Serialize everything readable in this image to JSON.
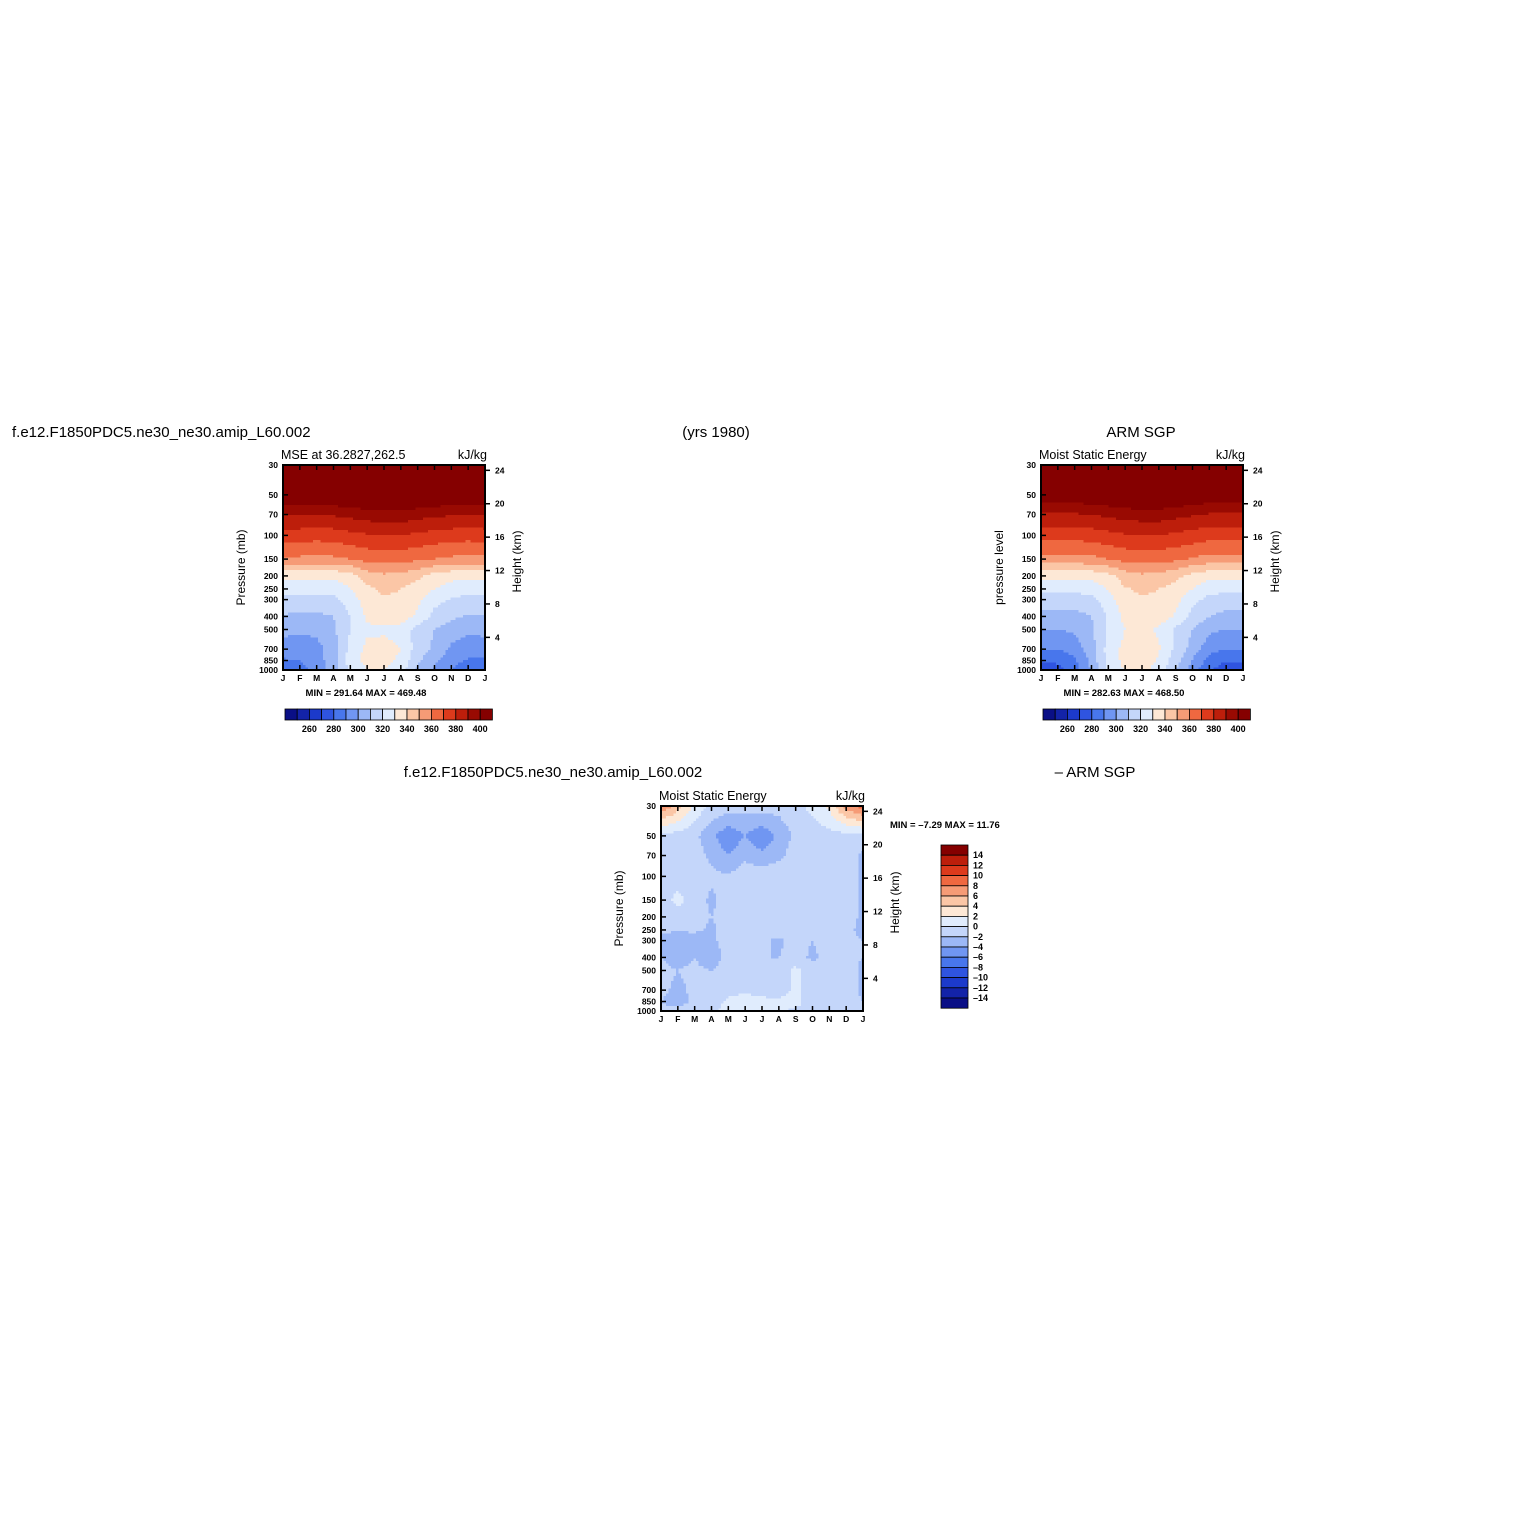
{
  "headers": {
    "case_name_top": "f.e12.F1850PDC5.ne30_ne30.amip_L60.002",
    "years": "(yrs 1980)",
    "obs_name": "ARM SGP",
    "case_name_bottom": "f.e12.F1850PDC5.ne30_ne30.amip_L60.002",
    "diff_suffix": "– ARM SGP"
  },
  "colors": {
    "mse_scale": [
      "#0a0f86",
      "#1323a8",
      "#1c3acb",
      "#2f54e0",
      "#4876ec",
      "#7096f2",
      "#9cb8f6",
      "#c4d6fa",
      "#e0ecfd",
      "#fde8d6",
      "#fbc6a6",
      "#f69b76",
      "#ef6840",
      "#dd3a1c",
      "#bd1e0b",
      "#990a02",
      "#850000"
    ],
    "diff_scale": [
      "#0a0f86",
      "#1323a8",
      "#1c3acb",
      "#2f54e0",
      "#4876ec",
      "#7096f2",
      "#9cb8f6",
      "#c4d6fa",
      "#e0ecfd",
      "#fde8d6",
      "#fbc6a6",
      "#f69b76",
      "#ef6840",
      "#dd3a1c",
      "#bd1e0b",
      "#850000"
    ]
  },
  "chart_data": [
    {
      "type": "heatmap",
      "title": "MSE at 36.2827,262.5",
      "units": "kJ/kg",
      "ylabel": "Pressure (mb)",
      "ylabel_right": "Height (km)",
      "x_ticks": [
        "J",
        "F",
        "M",
        "A",
        "M",
        "J",
        "J",
        "A",
        "S",
        "O",
        "N",
        "D",
        "J"
      ],
      "y_ticks": [
        "30",
        "50",
        "70",
        "100",
        "150",
        "200",
        "250",
        "300",
        "400",
        "500",
        "700",
        "850",
        "1000"
      ],
      "y_ticks_right": [
        "24",
        "20",
        "16",
        "12",
        "8",
        "4"
      ],
      "min_max": "MIN = 291.64  MAX = 469.48",
      "colorbar_labels": [
        "260",
        "280",
        "300",
        "320",
        "340",
        "360",
        "380",
        "400"
      ],
      "levels_mb": [
        30,
        50,
        70,
        100,
        150,
        200,
        250,
        300,
        400,
        500,
        700,
        850,
        1000
      ],
      "values": [
        [
          470,
          470,
          470,
          470,
          470,
          470,
          470,
          470,
          470,
          470,
          470,
          470,
          470
        ],
        [
          420,
          420,
          420,
          421,
          423,
          425,
          426,
          426,
          424,
          422,
          420,
          420,
          420
        ],
        [
          401,
          401,
          400,
          401,
          403,
          405,
          406,
          406,
          404,
          402,
          401,
          400,
          401
        ],
        [
          385,
          385,
          384,
          385,
          387,
          389,
          390,
          390,
          388,
          386,
          385,
          384,
          385
        ],
        [
          368,
          368,
          367,
          368,
          370,
          373,
          374,
          374,
          372,
          370,
          368,
          367,
          368
        ],
        [
          343,
          343,
          342,
          342,
          345,
          355,
          358,
          357,
          352,
          345,
          343,
          342,
          343
        ],
        [
          335,
          335,
          334,
          334,
          340,
          348,
          352,
          350,
          346,
          340,
          336,
          334,
          335
        ],
        [
          327,
          327,
          326,
          327,
          335,
          345,
          349,
          348,
          342,
          333,
          329,
          327,
          327
        ],
        [
          319,
          318,
          318,
          320,
          330,
          342,
          346,
          345,
          338,
          327,
          322,
          319,
          319
        ],
        [
          313,
          312,
          313,
          318,
          330,
          338,
          338,
          336,
          326,
          320,
          315,
          312,
          313
        ],
        [
          305,
          304,
          306,
          316,
          333,
          343,
          344,
          340,
          325,
          318,
          308,
          304,
          305
        ],
        [
          299,
          300,
          305,
          316,
          335,
          343,
          343,
          338,
          322,
          312,
          303,
          299,
          299
        ],
        [
          293,
          297,
          303,
          315,
          333,
          340,
          340,
          335,
          318,
          309,
          300,
          293,
          293
        ]
      ]
    },
    {
      "type": "heatmap",
      "title": "Moist Static Energy",
      "units": "kJ/kg",
      "ylabel": "pressure level",
      "ylabel_right": "Height (km)",
      "x_ticks": [
        "J",
        "F",
        "M",
        "A",
        "M",
        "J",
        "J",
        "A",
        "S",
        "O",
        "N",
        "D",
        "J"
      ],
      "y_ticks": [
        "30",
        "50",
        "70",
        "100",
        "150",
        "200",
        "250",
        "300",
        "400",
        "500",
        "700",
        "850",
        "1000"
      ],
      "y_ticks_right": [
        "24",
        "20",
        "16",
        "12",
        "8",
        "4"
      ],
      "min_max": "MIN = 282.63  MAX = 468.50",
      "colorbar_labels": [
        "260",
        "280",
        "300",
        "320",
        "340",
        "360",
        "380",
        "400"
      ],
      "levels_mb": [
        30,
        50,
        70,
        100,
        150,
        200,
        250,
        300,
        400,
        500,
        700,
        850,
        1000
      ],
      "values": [
        [
          468,
          468,
          468,
          468,
          468,
          468,
          468,
          468,
          468,
          468,
          468,
          468,
          468
        ],
        [
          418,
          418,
          418,
          419,
          421,
          423,
          424,
          424,
          422,
          420,
          418,
          418,
          418
        ],
        [
          399,
          399,
          399,
          400,
          402,
          404,
          405,
          405,
          403,
          401,
          399,
          399,
          399
        ],
        [
          384,
          384,
          384,
          385,
          387,
          389,
          390,
          390,
          388,
          386,
          384,
          384,
          384
        ],
        [
          366,
          366,
          366,
          367,
          370,
          373,
          374,
          374,
          372,
          369,
          366,
          366,
          366
        ],
        [
          343,
          343,
          343,
          343,
          347,
          355,
          358,
          357,
          353,
          346,
          343,
          343,
          343
        ],
        [
          333,
          333,
          333,
          334,
          341,
          349,
          352,
          350,
          346,
          340,
          334,
          333,
          333
        ],
        [
          325,
          325,
          325,
          327,
          336,
          346,
          349,
          348,
          343,
          333,
          327,
          325,
          325
        ],
        [
          317,
          317,
          317,
          320,
          331,
          343,
          346,
          345,
          339,
          327,
          320,
          317,
          317
        ],
        [
          310,
          310,
          312,
          318,
          332,
          340,
          341,
          339,
          328,
          320,
          312,
          310,
          310
        ],
        [
          300,
          300,
          304,
          316,
          334,
          343,
          345,
          341,
          328,
          316,
          304,
          300,
          300
        ],
        [
          291,
          292,
          298,
          313,
          334,
          343,
          345,
          339,
          324,
          309,
          296,
          291,
          291
        ],
        [
          283,
          287,
          295,
          311,
          333,
          341,
          343,
          336,
          320,
          305,
          292,
          283,
          283
        ]
      ]
    },
    {
      "type": "heatmap",
      "title": "Moist Static Energy",
      "units": "kJ/kg",
      "ylabel": "Pressure (mb)",
      "ylabel_right": "Height (km)",
      "x_ticks": [
        "J",
        "F",
        "M",
        "A",
        "M",
        "J",
        "J",
        "A",
        "S",
        "O",
        "N",
        "D",
        "J"
      ],
      "y_ticks": [
        "30",
        "50",
        "70",
        "100",
        "150",
        "200",
        "250",
        "300",
        "400",
        "500",
        "700",
        "850",
        "1000"
      ],
      "y_ticks_right": [
        "24",
        "20",
        "16",
        "12",
        "8",
        "4"
      ],
      "min_max": "MIN =   –7.29  MAX =   11.76",
      "colorbar_labels": [
        "14",
        "12",
        "10",
        "8",
        "6",
        "4",
        "2",
        "0",
        "–2",
        "–4",
        "–6",
        "–8",
        "–10",
        "–12",
        "–14"
      ],
      "levels_mb": [
        30,
        50,
        70,
        100,
        150,
        200,
        250,
        300,
        400,
        500,
        700,
        850,
        1000
      ],
      "values": [
        [
          8.0,
          5.0,
          1.5,
          -0.5,
          -1.0,
          -1.2,
          -1.0,
          -1.2,
          -0.5,
          0.5,
          2.5,
          7.0,
          9.0
        ],
        [
          -0.8,
          -0.8,
          -1.5,
          -3.5,
          -5.5,
          -4.0,
          -5.5,
          -3.5,
          -1.5,
          -1.0,
          -0.8,
          -0.8,
          -0.8
        ],
        [
          -0.6,
          -0.6,
          -1.0,
          -2.5,
          -4.0,
          -2.5,
          -3.5,
          -2.5,
          -1.0,
          -0.5,
          -0.8,
          -0.6,
          -2.5
        ],
        [
          -0.8,
          -0.8,
          -1.0,
          -1.5,
          -1.8,
          -0.8,
          -0.6,
          -0.6,
          -1.5,
          -0.5,
          -0.8,
          -0.8,
          -2.5
        ],
        [
          -0.8,
          0.5,
          -0.8,
          -2.5,
          -1.0,
          -0.5,
          -0.5,
          -0.6,
          -1.5,
          -0.8,
          -0.8,
          -0.8,
          -2.5
        ],
        [
          -1.0,
          -0.8,
          -1.0,
          -2.0,
          -0.8,
          -0.5,
          -0.5,
          -0.8,
          -2.0,
          -1.0,
          -0.8,
          -1.0,
          -2.5
        ],
        [
          -1.5,
          -2.0,
          -1.5,
          -2.5,
          -0.8,
          -0.6,
          -0.8,
          -1.0,
          -2.0,
          -1.5,
          -1.0,
          -1.5,
          -2.5
        ],
        [
          -3.0,
          -2.5,
          -3.5,
          -2.5,
          -1.0,
          -0.6,
          -1.5,
          -2.5,
          -1.0,
          -2.0,
          -1.0,
          -1.5,
          -2.0
        ],
        [
          -2.0,
          -3.0,
          -2.0,
          -3.5,
          -1.0,
          -0.8,
          -2.0,
          -2.0,
          -1.0,
          -2.5,
          -1.0,
          -1.5,
          -2.0
        ],
        [
          -1.5,
          -2.0,
          -1.5,
          -2.0,
          -0.8,
          -0.6,
          -0.8,
          -1.5,
          0.5,
          -1.0,
          -0.8,
          -1.0,
          -2.5
        ],
        [
          -1.5,
          -2.5,
          -1.5,
          -1.0,
          -0.6,
          -0.5,
          -0.8,
          -1.0,
          0.5,
          -1.5,
          -0.8,
          -1.0,
          -2.5
        ],
        [
          -2.0,
          -3.0,
          -1.5,
          -1.5,
          0.5,
          1.0,
          0.5,
          0.5,
          1.0,
          -1.5,
          -0.8,
          -0.8,
          -2.0
        ],
        [
          -1.5,
          -1.0,
          -0.8,
          -0.8,
          1.5,
          2.0,
          1.0,
          0.5,
          -0.5,
          -0.8,
          -0.6,
          -0.6,
          -0.8
        ]
      ]
    }
  ]
}
